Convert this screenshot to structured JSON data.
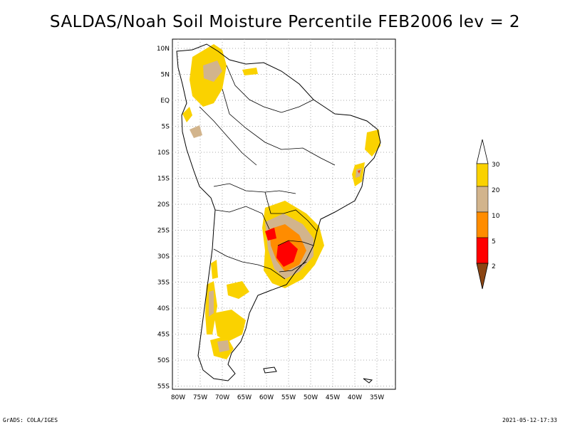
{
  "title": "SALDAS/Noah Soil Moisture Percentile FEB2006 lev = 2",
  "axes": {
    "lon_labels": [
      "80W",
      "75W",
      "70W",
      "65W",
      "60W",
      "55W",
      "50W",
      "45W",
      "40W",
      "35W"
    ],
    "lat_labels": [
      "10N",
      "5N",
      "EQ",
      "5S",
      "10S",
      "15S",
      "20S",
      "25S",
      "30S",
      "35S",
      "40S",
      "45S",
      "50S",
      "55S"
    ],
    "lon_range": [
      -81,
      -32
    ],
    "lat_range": [
      -56,
      12
    ]
  },
  "legend": {
    "labels": [
      "30",
      "20",
      "10",
      "5",
      "2"
    ],
    "colors": {
      "above_30": "#ffffff",
      "20_30": "#fad200",
      "10_20": "#d2b48c",
      "5_10": "#ff8c00",
      "2_5": "#ff0000",
      "below_2": "#8b4513"
    }
  },
  "footer": {
    "left": "GrADS: COLA/IGES",
    "right": "2021-05-12-17:33"
  }
}
